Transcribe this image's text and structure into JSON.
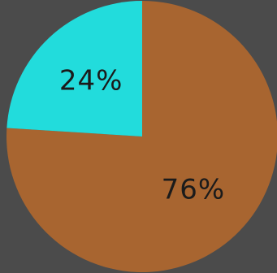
{
  "chart_data": {
    "type": "pie",
    "title": "",
    "slices": [
      {
        "label": "76%",
        "value": 76,
        "color": "#a86530"
      },
      {
        "label": "24%",
        "value": 24,
        "color": "#22dcdc"
      }
    ],
    "start_angle_deg": 0,
    "direction": "clockwise",
    "legend": "none",
    "background": "#4b4b4b"
  }
}
